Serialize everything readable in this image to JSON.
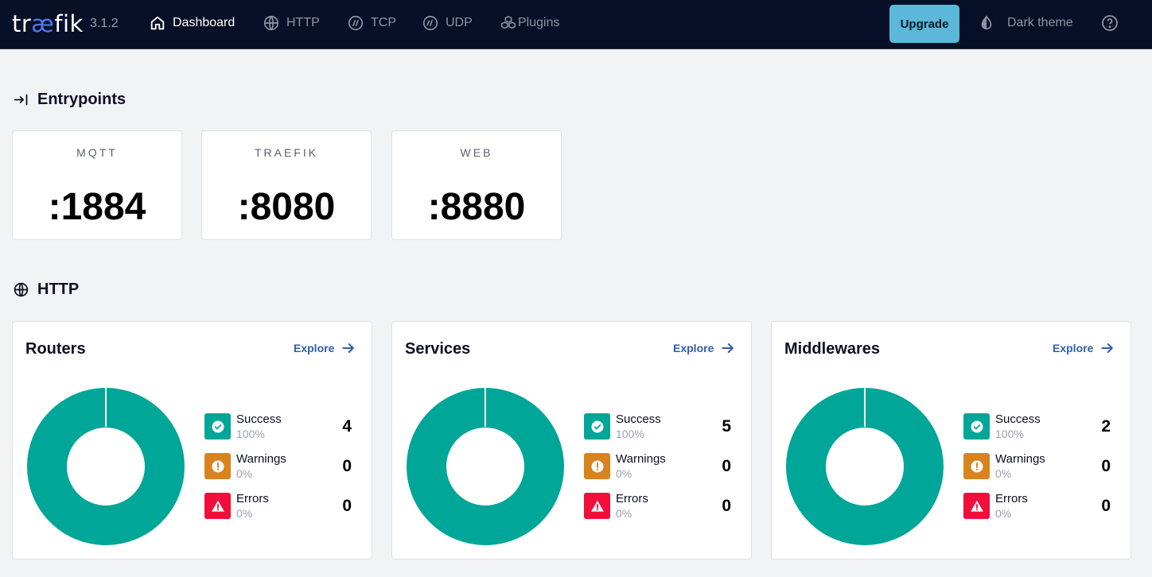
{
  "nav": {
    "logo_prefix": "tr",
    "logo_ae": "æ",
    "logo_suffix": "fik",
    "version": "3.1.2",
    "items": [
      {
        "label": "Dashboard",
        "icon": "home-icon",
        "active": true
      },
      {
        "label": "HTTP",
        "icon": "globe-icon",
        "active": false
      },
      {
        "label": "TCP",
        "icon": "tcp-icon",
        "active": false
      },
      {
        "label": "UDP",
        "icon": "udp-icon",
        "active": false
      },
      {
        "label": "Plugins",
        "icon": "plugins-icon",
        "active": false
      }
    ],
    "upgrade_label": "Upgrade",
    "theme_label": "Dark theme",
    "help_icon": "help-icon"
  },
  "entrypoints": {
    "title": "Entrypoints",
    "icon": "entrypoint-icon",
    "items": [
      {
        "name": "MQTT",
        "port": ":1884"
      },
      {
        "name": "TRAEFIK",
        "port": ":8080"
      },
      {
        "name": "WEB",
        "port": ":8880"
      }
    ]
  },
  "http": {
    "title": "HTTP",
    "icon": "globe-icon",
    "explore_label": "Explore",
    "cards": [
      {
        "title": "Routers",
        "success": {
          "label": "Success",
          "pct": "100%",
          "count": "4"
        },
        "warnings": {
          "label": "Warnings",
          "pct": "0%",
          "count": "0"
        },
        "errors": {
          "label": "Errors",
          "pct": "0%",
          "count": "0"
        }
      },
      {
        "title": "Services",
        "success": {
          "label": "Success",
          "pct": "100%",
          "count": "5"
        },
        "warnings": {
          "label": "Warnings",
          "pct": "0%",
          "count": "0"
        },
        "errors": {
          "label": "Errors",
          "pct": "0%",
          "count": "0"
        }
      },
      {
        "title": "Middlewares",
        "success": {
          "label": "Success",
          "pct": "100%",
          "count": "2"
        },
        "warnings": {
          "label": "Warnings",
          "pct": "0%",
          "count": "0"
        },
        "errors": {
          "label": "Errors",
          "pct": "0%",
          "count": "0"
        }
      }
    ]
  },
  "colors": {
    "nav_bg": "#081027",
    "success": "#00a697",
    "warning": "#d9831f",
    "error": "#f10e3b",
    "accent": "#5bb8d8",
    "link": "#2e5fb0"
  }
}
